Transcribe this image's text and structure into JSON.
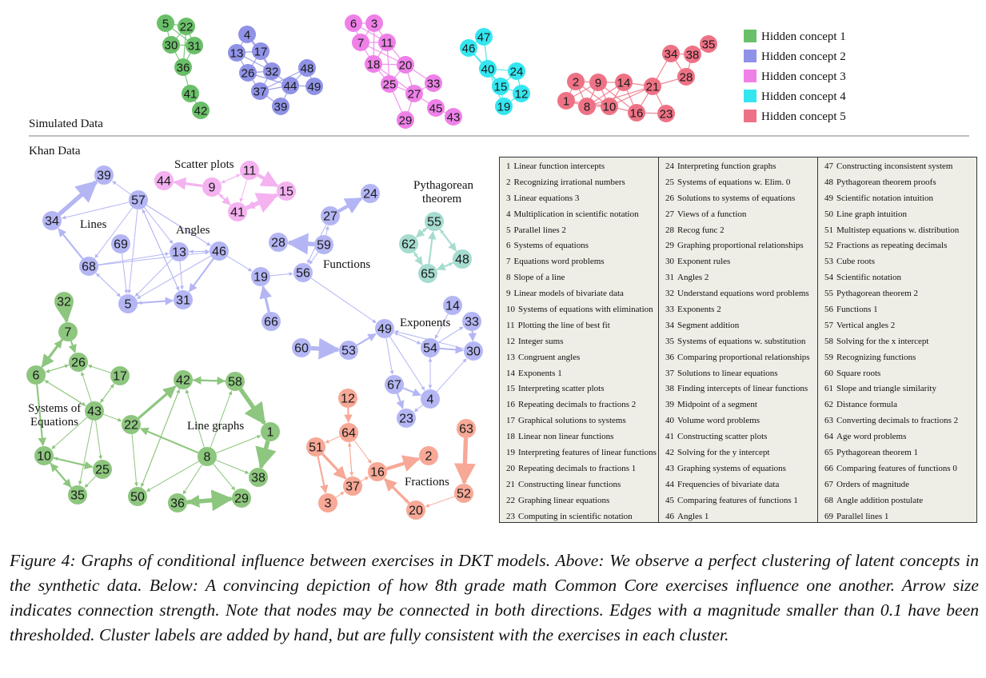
{
  "section_labels": {
    "simulated": "Simulated Data",
    "khan": "Khan Data"
  },
  "legend": [
    {
      "label": "Hidden concept 1",
      "color": "#6abf69"
    },
    {
      "label": "Hidden concept 2",
      "color": "#8f92e6"
    },
    {
      "label": "Hidden concept 3",
      "color": "#ee80e8"
    },
    {
      "label": "Hidden concept 4",
      "color": "#33e6f0"
    },
    {
      "label": "Hidden concept 5",
      "color": "#ee7285"
    }
  ],
  "cluster_labels": {
    "scatter_plots": "Scatter plots",
    "pythagorean_1": "Pythagorean",
    "pythagorean_2": "theorem",
    "lines": "Lines",
    "angles": "Angles",
    "functions": "Functions",
    "exponents": "Exponents",
    "systems_1": "Systems of",
    "systems_2": "Equations",
    "line_graphs": "Line graphs",
    "fractions": "Fractions"
  },
  "colors": {
    "simulated": {
      "c1": "#6abf69",
      "c2": "#8f92e6",
      "c3": "#ee80e8",
      "c4": "#33e6f0",
      "c5": "#ee7285"
    },
    "khan": {
      "purple": "#b4b6f4",
      "pink": "#f4b2f0",
      "teal": "#a6dcd0",
      "green": "#8dc67e",
      "salmon": "#f7a896"
    }
  },
  "simulated_nodes": {
    "c1": [
      "5",
      "22",
      "30",
      "31",
      "36",
      "41",
      "42"
    ],
    "c2": [
      "4",
      "13",
      "17",
      "26",
      "32",
      "37",
      "44",
      "48",
      "49",
      "39"
    ],
    "c3": [
      "6",
      "3",
      "7",
      "11",
      "18",
      "20",
      "25",
      "27",
      "33",
      "45",
      "29",
      "43"
    ],
    "c4": [
      "47",
      "46",
      "40",
      "24",
      "15",
      "12",
      "19"
    ],
    "c5": [
      "34",
      "38",
      "35",
      "28",
      "2",
      "9",
      "14",
      "21",
      "1",
      "8",
      "10",
      "16",
      "23"
    ]
  },
  "khan_nodes": {
    "purple": [
      "39",
      "57",
      "34",
      "69",
      "68",
      "13",
      "46",
      "5",
      "31",
      "19",
      "66",
      "28",
      "59",
      "56",
      "27",
      "24",
      "14",
      "33",
      "49",
      "54",
      "30",
      "60",
      "53",
      "67",
      "4",
      "23"
    ],
    "pink": [
      "44",
      "9",
      "11",
      "41",
      "15"
    ],
    "teal": [
      "55",
      "62",
      "48",
      "65"
    ],
    "green": [
      "32",
      "7",
      "26",
      "17",
      "6",
      "43",
      "10",
      "25",
      "35",
      "42",
      "58",
      "22",
      "1",
      "8",
      "38",
      "50",
      "36",
      "29"
    ],
    "salmon": [
      "12",
      "64",
      "51",
      "37",
      "3",
      "16",
      "2",
      "20",
      "52",
      "63"
    ]
  },
  "exercises": [
    [
      "1",
      "Linear function intercepts"
    ],
    [
      "2",
      "Recognizing irrational numbers"
    ],
    [
      "3",
      "Linear equations 3"
    ],
    [
      "4",
      "Multiplication in scientific notation"
    ],
    [
      "5",
      "Parallel lines 2"
    ],
    [
      "6",
      "Systems of equations"
    ],
    [
      "7",
      "Equations word problems"
    ],
    [
      "8",
      "Slope of a line"
    ],
    [
      "9",
      "Linear models of bivariate data"
    ],
    [
      "10",
      "Systems of equations with elimination"
    ],
    [
      "11",
      "Plotting the line of best fit"
    ],
    [
      "12",
      "Integer sums"
    ],
    [
      "13",
      "Congruent angles"
    ],
    [
      "14",
      "Exponents 1"
    ],
    [
      "15",
      "Interpreting scatter plots"
    ],
    [
      "16",
      "Repeating decimals to fractions 2"
    ],
    [
      "17",
      "Graphical solutions to systems"
    ],
    [
      "18",
      "Linear non linear functions"
    ],
    [
      "19",
      "Interpreting features of linear functions"
    ],
    [
      "20",
      "Repeating decimals to fractions 1"
    ],
    [
      "21",
      "Constructing linear functions"
    ],
    [
      "22",
      "Graphing linear equations"
    ],
    [
      "23",
      "Computing in scientific notation"
    ],
    [
      "24",
      "Interpreting function graphs"
    ],
    [
      "25",
      "Systems of equations w. Elim. 0"
    ],
    [
      "26",
      "Solutions to systems of equations"
    ],
    [
      "27",
      "Views of a function"
    ],
    [
      "28",
      "Recog func 2"
    ],
    [
      "29",
      "Graphing proportional relationships"
    ],
    [
      "30",
      "Exponent rules"
    ],
    [
      "31",
      "Angles 2"
    ],
    [
      "32",
      "Understand equations word problems"
    ],
    [
      "33",
      "Exponents 2"
    ],
    [
      "34",
      "Segment addition"
    ],
    [
      "35",
      "Systems of equations w. substitution"
    ],
    [
      "36",
      "Comparing proportional relationships"
    ],
    [
      "37",
      "Solutions to linear equations"
    ],
    [
      "38",
      "Finding intercepts of linear functions"
    ],
    [
      "39",
      "Midpoint of a segment"
    ],
    [
      "40",
      "Volume word problems"
    ],
    [
      "41",
      "Constructing scatter plots"
    ],
    [
      "42",
      "Solving for the y intercept"
    ],
    [
      "43",
      "Graphing systems of equations"
    ],
    [
      "44",
      "Frequencies of bivariate data"
    ],
    [
      "45",
      "Comparing features of functions 1"
    ],
    [
      "46",
      "Angles 1"
    ],
    [
      "47",
      "Constructing inconsistent system"
    ],
    [
      "48",
      "Pythagorean theorem proofs"
    ],
    [
      "49",
      "Scientific notation intuition"
    ],
    [
      "50",
      "Line graph intuition"
    ],
    [
      "51",
      "Multistep equations w. distribution"
    ],
    [
      "52",
      "Fractions as repeating decimals"
    ],
    [
      "53",
      "Cube roots"
    ],
    [
      "54",
      "Scientific notation"
    ],
    [
      "55",
      "Pythagorean theorem 2"
    ],
    [
      "56",
      "Functions 1"
    ],
    [
      "57",
      "Vertical angles 2"
    ],
    [
      "58",
      "Solving for the x intercept"
    ],
    [
      "59",
      "Recognizing functions"
    ],
    [
      "60",
      "Square roots"
    ],
    [
      "61",
      "Slope and triangle similarity"
    ],
    [
      "62",
      "Distance formula"
    ],
    [
      "63",
      "Converting decimals to fractions 2"
    ],
    [
      "64",
      "Age word problems"
    ],
    [
      "65",
      "Pythagorean theorem 1"
    ],
    [
      "66",
      "Comparing features of functions 0"
    ],
    [
      "67",
      "Orders of magnitude"
    ],
    [
      "68",
      "Angle addition postulate"
    ],
    [
      "69",
      "Parallel lines 1"
    ]
  ],
  "caption": "Figure 4: Graphs of conditional influence between exercises in DKT models. Above: We observe a perfect clustering of latent concepts in the synthetic data. Below: A convincing depiction of how 8th grade math Common Core exercises influence one another. Arrow size indicates connection strength. Note that nodes may be connected in both directions. Edges with a magnitude smaller than 0.1 have been thresholded. Cluster labels are added by hand, but are fully consistent with the exercises in each cluster."
}
